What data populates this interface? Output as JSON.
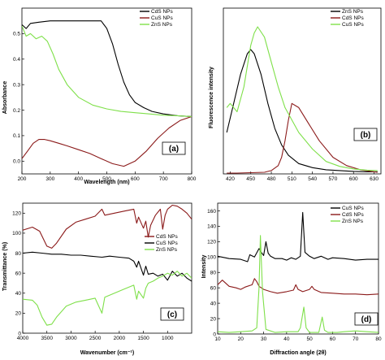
{
  "chart_data": [
    {
      "type": "line",
      "panel_label": "(a)",
      "xlabel": "Wavelength (nm)",
      "ylabel": "Absorbance",
      "xlim": [
        200,
        800
      ],
      "ylim": [
        -0.05,
        0.6
      ],
      "xticks": [
        200,
        300,
        400,
        500,
        600,
        700,
        800
      ],
      "yticks": [
        0.0,
        0.1,
        0.2,
        0.3,
        0.4,
        0.5
      ],
      "ytick_labels": [
        "0.0",
        "0.1",
        "0.2",
        "0.3",
        "0.4",
        "0.5"
      ],
      "legend_position": "top-right",
      "series": [
        {
          "name": "CdS NPs",
          "color": "#000000",
          "x": [
            200,
            215,
            230,
            260,
            300,
            350,
            400,
            450,
            480,
            500,
            520,
            540,
            560,
            580,
            600,
            630,
            660,
            700,
            750,
            800
          ],
          "y": [
            0.535,
            0.52,
            0.54,
            0.545,
            0.55,
            0.55,
            0.55,
            0.55,
            0.55,
            0.52,
            0.46,
            0.38,
            0.31,
            0.26,
            0.23,
            0.21,
            0.195,
            0.185,
            0.178,
            0.175
          ]
        },
        {
          "name": "CuS NPs",
          "color": "#8b1a1a",
          "x": [
            200,
            220,
            240,
            260,
            280,
            300,
            330,
            360,
            400,
            440,
            480,
            520,
            560,
            600,
            640,
            680,
            720,
            760,
            800
          ],
          "y": [
            0.01,
            0.04,
            0.07,
            0.085,
            0.085,
            0.08,
            0.07,
            0.06,
            0.045,
            0.03,
            0.01,
            -0.01,
            -0.02,
            0.0,
            0.04,
            0.09,
            0.13,
            0.16,
            0.175
          ]
        },
        {
          "name": "ZnS NPs",
          "color": "#7fe04a",
          "x": [
            200,
            215,
            230,
            250,
            270,
            290,
            310,
            330,
            360,
            400,
            450,
            500,
            550,
            600,
            650,
            700,
            750,
            800
          ],
          "y": [
            0.53,
            0.49,
            0.5,
            0.48,
            0.49,
            0.47,
            0.42,
            0.36,
            0.3,
            0.25,
            0.22,
            0.205,
            0.195,
            0.19,
            0.185,
            0.18,
            0.178,
            0.175
          ]
        }
      ]
    },
    {
      "type": "line",
      "panel_label": "(b)",
      "xlabel": "",
      "ylabel": "Fluorescence intensity",
      "xlim": [
        410,
        640
      ],
      "ylim": [
        0,
        40
      ],
      "xticks": [
        420,
        450,
        480,
        510,
        540,
        570,
        600,
        630
      ],
      "yticks": [],
      "legend_position": "top-right",
      "series": [
        {
          "name": "ZnS NPs",
          "color": "#000000",
          "x": [
            415,
            425,
            435,
            445,
            450,
            455,
            465,
            475,
            485,
            495,
            505,
            520,
            540,
            560,
            580,
            600,
            620,
            635
          ],
          "y": [
            10,
            17,
            24,
            29,
            30,
            29,
            24,
            17,
            11,
            7,
            4.5,
            2.5,
            1.5,
            1,
            0.8,
            0.6,
            0.5,
            0.5
          ]
        },
        {
          "name": "CdS NPs",
          "color": "#8b1a1a",
          "x": [
            415,
            430,
            450,
            470,
            480,
            490,
            495,
            500,
            505,
            510,
            520,
            535,
            550,
            570,
            590,
            610,
            630,
            635
          ],
          "y": [
            0.2,
            0.2,
            0.3,
            0.4,
            0.8,
            2,
            4,
            8,
            13,
            17,
            16,
            12,
            8,
            4,
            2,
            1,
            0.5,
            0.4
          ]
        },
        {
          "name": "CuS NPs",
          "color": "#7fe04a",
          "x": [
            415,
            420,
            430,
            440,
            450,
            455,
            460,
            470,
            480,
            490,
            500,
            520,
            540,
            560,
            580,
            600,
            620,
            635
          ],
          "y": [
            16,
            17,
            15,
            21,
            31,
            34,
            35.5,
            33,
            27,
            21,
            16,
            10,
            6,
            3,
            1.8,
            1.2,
            0.9,
            0.8
          ]
        }
      ]
    },
    {
      "type": "line",
      "panel_label": "(c)",
      "xlabel": "Wavenumber (cm⁻¹)",
      "ylabel": "Transmittance (%)",
      "xlim": [
        4000,
        500
      ],
      "ylim": [
        0,
        130
      ],
      "xticks": [
        4000,
        3500,
        3000,
        2500,
        2000,
        1500,
        1000
      ],
      "yticks": [
        0,
        20,
        40,
        60,
        80,
        100,
        120
      ],
      "legend_position": "center-right",
      "series": [
        {
          "name": "CdS NPs",
          "color": "#8b1a1a",
          "x": [
            4000,
            3800,
            3650,
            3500,
            3400,
            3300,
            3100,
            2900,
            2700,
            2500,
            2360,
            2300,
            2100,
            1900,
            1700,
            1640,
            1600,
            1500,
            1450,
            1400,
            1350,
            1250,
            1150,
            1100,
            1050,
            1000,
            900,
            800,
            700,
            600,
            500
          ],
          "y": [
            103,
            106,
            102,
            87,
            85,
            90,
            104,
            111,
            114,
            117,
            124,
            118,
            120,
            122,
            124,
            110,
            116,
            105,
            112,
            96,
            108,
            118,
            124,
            104,
            118,
            124,
            128,
            127,
            124,
            120,
            114
          ]
        },
        {
          "name": "CuS NPs",
          "color": "#000000",
          "x": [
            4000,
            3800,
            3600,
            3400,
            3200,
            3000,
            2800,
            2600,
            2360,
            2200,
            2000,
            1800,
            1700,
            1640,
            1600,
            1500,
            1450,
            1400,
            1300,
            1200,
            1100,
            1000,
            900,
            800,
            700,
            600,
            500
          ],
          "y": [
            80,
            81,
            80,
            79,
            79,
            78,
            78,
            77,
            76,
            77,
            76,
            75,
            72,
            66,
            72,
            58,
            67,
            59,
            60,
            57,
            59,
            53,
            62,
            57,
            60,
            55,
            52
          ]
        },
        {
          "name": "ZnS NPs",
          "color": "#7fe04a",
          "x": [
            4000,
            3800,
            3700,
            3600,
            3500,
            3400,
            3300,
            3100,
            2900,
            2700,
            2500,
            2360,
            2300,
            2100,
            1900,
            1700,
            1640,
            1600,
            1500,
            1450,
            1400,
            1300,
            1200,
            1100,
            1000,
            900,
            800,
            700,
            600,
            500
          ],
          "y": [
            34,
            33,
            28,
            16,
            8,
            9,
            16,
            27,
            31,
            33,
            35,
            20,
            36,
            40,
            44,
            48,
            34,
            42,
            35,
            45,
            50,
            52,
            55,
            57,
            60,
            58,
            62,
            57,
            60,
            55
          ]
        }
      ]
    },
    {
      "type": "line",
      "panel_label": "(d)",
      "xlabel": "Diffraction angle (2θ)",
      "ylabel": "Intensity",
      "xlim": [
        10,
        80
      ],
      "ylim": [
        0,
        170
      ],
      "xticks": [
        10,
        20,
        30,
        40,
        50,
        60,
        70,
        80
      ],
      "yticks": [
        0,
        20,
        40,
        60,
        80,
        100,
        120,
        140,
        160
      ],
      "legend_position": "top-right",
      "series": [
        {
          "name": "CuS NPs",
          "color": "#000000",
          "x": [
            10,
            15,
            20,
            23,
            24,
            26,
            28,
            29,
            30,
            31,
            32,
            33,
            35,
            38,
            40,
            42,
            44,
            46,
            47,
            48,
            50,
            52,
            55,
            58,
            60,
            65,
            70,
            75,
            80
          ],
          "y": [
            101,
            98,
            97,
            94,
            103,
            100,
            111,
            106,
            102,
            120,
            105,
            101,
            98,
            98,
            96,
            99,
            97,
            101,
            158,
            106,
            101,
            98,
            101,
            97,
            99,
            98,
            96,
            97,
            97
          ]
        },
        {
          "name": "CdS NPs",
          "color": "#8b1a1a",
          "x": [
            10,
            12,
            15,
            18,
            20,
            22,
            25,
            26,
            27,
            28,
            30,
            33,
            36,
            40,
            43,
            44,
            45,
            47,
            50,
            51,
            52,
            55,
            60,
            65,
            70,
            75,
            80
          ],
          "y": [
            64,
            70,
            62,
            60,
            58,
            61,
            64,
            72,
            68,
            62,
            58,
            55,
            53,
            55,
            57,
            64,
            58,
            55,
            58,
            62,
            58,
            54,
            53,
            52,
            52,
            51,
            52
          ]
        },
        {
          "name": "ZnS NPs",
          "color": "#7fe04a",
          "x": [
            10,
            15,
            20,
            25,
            27,
            28,
            28.6,
            29.5,
            31,
            35,
            40,
            45,
            46,
            47.5,
            48.5,
            50,
            54,
            55.5,
            56.5,
            58,
            62,
            65,
            70,
            75,
            80
          ],
          "y": [
            3,
            2,
            3,
            4,
            8,
            60,
            128,
            55,
            6,
            2,
            3,
            3,
            8,
            35,
            8,
            2,
            2,
            22,
            5,
            2,
            2,
            3,
            4,
            3,
            2
          ]
        }
      ]
    }
  ]
}
